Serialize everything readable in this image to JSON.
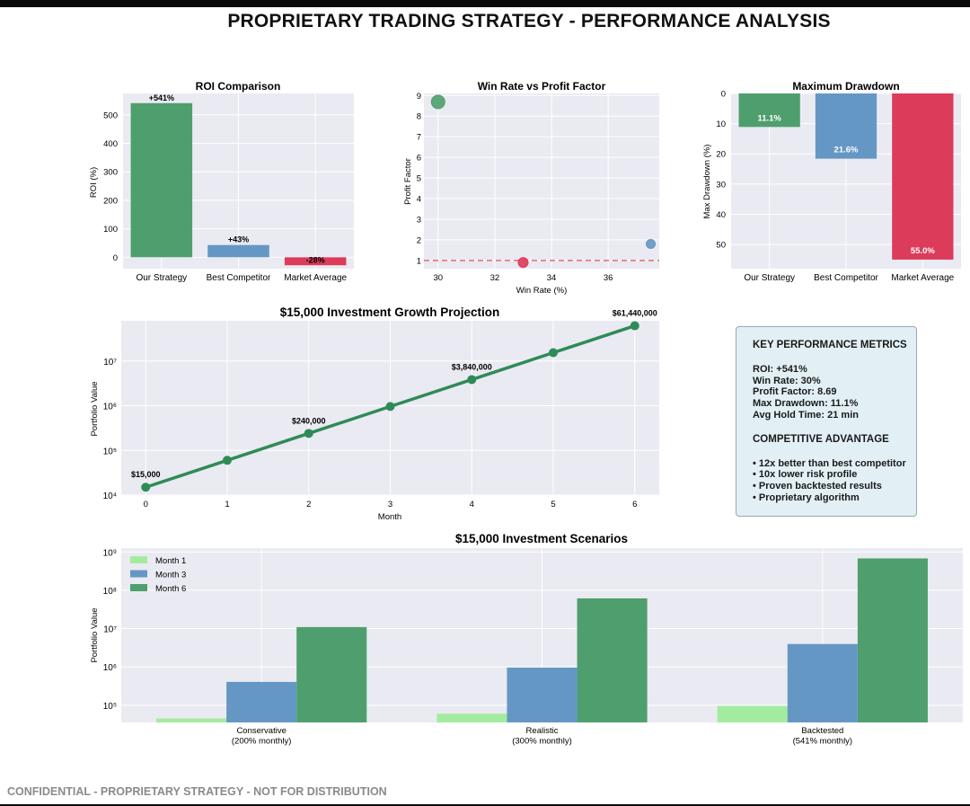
{
  "page": {
    "title": "PROPRIETARY TRADING STRATEGY - PERFORMANCE ANALYSIS",
    "footer": "CONFIDENTIAL - PROPRIETARY STRATEGY - NOT FOR DISTRIBUTION"
  },
  "kpi": {
    "heading": "KEY PERFORMANCE METRICS",
    "metrics": [
      "ROI: +541%",
      "Win Rate: 30%",
      "Profit Factor: 8.69",
      "Max Drawdown: 11.1%",
      "Avg Hold Time: 21 min"
    ],
    "advantage_heading": "COMPETITIVE ADVANTAGE",
    "advantages": [
      "• 12x better than best competitor",
      "• 10x lower risk profile",
      "• Proven backtested results",
      "• Proprietary algorithm"
    ]
  },
  "colors": {
    "green": "#4f9f6e",
    "blue": "#6597c4",
    "red": "#dc3b5a",
    "light_green": "#a3ec9f",
    "line": "#2e8b57",
    "plot_bg": "#eaeaf2",
    "grid": "#ffffff",
    "dashed": "#e86b6b"
  },
  "chart_data": [
    {
      "type": "bar",
      "title": "ROI Comparison",
      "xlabel": "",
      "ylabel": "ROI (%)",
      "categories": [
        "Our Strategy",
        "Best Competitor",
        "Market Average"
      ],
      "values": [
        541,
        43,
        -28
      ],
      "labels": [
        "+541%",
        "+43%",
        "-28%"
      ],
      "ylim": [
        -40,
        575
      ],
      "yticks": [
        0,
        100,
        200,
        300,
        400,
        500
      ],
      "grid": true
    },
    {
      "type": "scatter",
      "title": "Win Rate vs Profit Factor",
      "xlabel": "Win Rate (%)",
      "ylabel": "Profit Factor",
      "points": [
        {
          "x": 30,
          "y": 8.69,
          "color": "green"
        },
        {
          "x": 33,
          "y": 0.9,
          "color": "red"
        },
        {
          "x": 37.5,
          "y": 1.8,
          "color": "blue"
        }
      ],
      "reference_line_y": 1,
      "xlim": [
        29.5,
        37.8
      ],
      "ylim": [
        0.6,
        9.1
      ],
      "xticks": [
        30,
        32,
        34,
        36
      ],
      "yticks": [
        1,
        2,
        3,
        4,
        5,
        6,
        7,
        8,
        9
      ],
      "grid": true
    },
    {
      "type": "bar",
      "title": "Maximum Drawdown",
      "xlabel": "",
      "ylabel": "Max Drawdown (%)",
      "categories": [
        "Our Strategy",
        "Best Competitor",
        "Market Average"
      ],
      "values": [
        11.1,
        21.6,
        55.0
      ],
      "labels": [
        "11.1%",
        "21.6%",
        "55.0%"
      ],
      "ylim": [
        0,
        58
      ],
      "yticks": [
        0,
        10,
        20,
        30,
        40,
        50
      ],
      "inverted": true,
      "grid": true
    },
    {
      "type": "line",
      "title": "$15,000 Investment Growth Projection",
      "xlabel": "Month",
      "ylabel": "Portfolio Value",
      "x": [
        0,
        1,
        2,
        3,
        4,
        5,
        6
      ],
      "y": [
        15000,
        60000,
        240000,
        960000,
        3840000,
        15360000,
        61440000
      ],
      "annotations": [
        {
          "x": 0,
          "label": "$15,000"
        },
        {
          "x": 2,
          "label": "$240,000"
        },
        {
          "x": 4,
          "label": "$3,840,000"
        },
        {
          "x": 6,
          "label": "$61,440,000"
        }
      ],
      "yscale": "log",
      "ylim_exp": [
        4,
        7.9
      ],
      "yticks_exp": [
        4,
        5,
        6,
        7
      ],
      "xticks": [
        0,
        1,
        2,
        3,
        4,
        5,
        6
      ],
      "grid": true
    },
    {
      "type": "bar",
      "title": "$15,000 Investment Scenarios",
      "xlabel": "",
      "ylabel": "Portfolio Value",
      "categories": [
        "Conservative\n(200% monthly)",
        "Realistic\n(300% monthly)",
        "Backtested\n(541% monthly)"
      ],
      "series": [
        {
          "name": "Month 1",
          "values": [
            45000,
            60000,
            96150
          ],
          "color": "light_green"
        },
        {
          "name": "Month 3",
          "values": [
            405000,
            960000,
            3960000
          ],
          "color": "blue"
        },
        {
          "name": "Month 6",
          "values": [
            10935000,
            61440000,
            678000000
          ],
          "color": "green"
        }
      ],
      "yscale": "log",
      "ylim_exp": [
        4.55,
        9.1
      ],
      "yticks_exp": [
        5,
        6,
        7,
        8,
        9
      ],
      "legend": "top-left",
      "grid": true
    }
  ]
}
